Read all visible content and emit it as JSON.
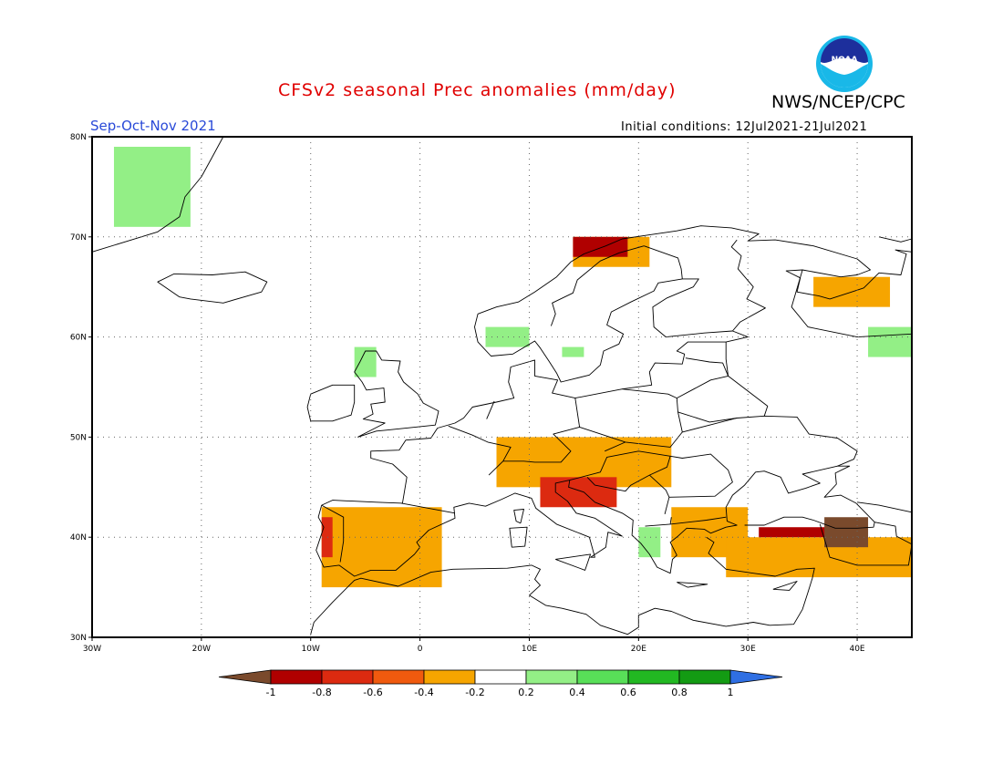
{
  "header": {
    "title": "CFSv2 seasonal Prec anomalies (mm/day)",
    "agency": "NWS/NCEP/CPC",
    "season": "Sep-Oct-Nov 2021",
    "initial_conditions": "Initial conditions: 12Jul2021-21Jul2021",
    "logo_text": "NOAA"
  },
  "map": {
    "lon_range": [
      -30,
      45
    ],
    "lat_range": [
      30,
      80
    ],
    "lon_ticks": [
      {
        "value": -30,
        "label": "30W"
      },
      {
        "value": -20,
        "label": "20W"
      },
      {
        "value": -10,
        "label": "10W"
      },
      {
        "value": 0,
        "label": "0"
      },
      {
        "value": 10,
        "label": "10E"
      },
      {
        "value": 20,
        "label": "20E"
      },
      {
        "value": 30,
        "label": "30E"
      },
      {
        "value": 40,
        "label": "40E"
      }
    ],
    "lat_ticks": [
      {
        "value": 30,
        "label": "30N"
      },
      {
        "value": 40,
        "label": "40N"
      },
      {
        "value": 50,
        "label": "50N"
      },
      {
        "value": 60,
        "label": "60N"
      },
      {
        "value": 70,
        "label": "70N"
      },
      {
        "value": 80,
        "label": "80N"
      }
    ],
    "grid": true,
    "colorbar": {
      "labels": [
        "-1",
        "-0.8",
        "-0.6",
        "-0.4",
        "-0.2",
        "0.2",
        "0.4",
        "0.6",
        "0.8",
        "1"
      ],
      "colors": [
        "#7a4a2c",
        "#b00000",
        "#dc2a10",
        "#f05a0e",
        "#f6a500",
        "#ffffff",
        "#93ef86",
        "#58df58",
        "#22b822",
        "#139b13",
        "#2f6fe3"
      ]
    }
  },
  "chart_data": {
    "type": "heatmap",
    "title": "CFSv2 seasonal Prec anomalies (mm/day)",
    "units": "mm/day",
    "period": "Sep-Oct-Nov 2021",
    "xlim": [
      -30,
      45
    ],
    "ylim": [
      30,
      80
    ],
    "anomaly_regions": [
      {
        "region": "Greenland (east coast)",
        "class": "0.2 to 0.4",
        "lon": [
          -28,
          -21
        ],
        "lat": [
          71,
          79
        ]
      },
      {
        "region": "Scotland (west)",
        "class": "0.2 to 0.4",
        "lon": [
          -6,
          -4
        ],
        "lat": [
          56,
          59
        ]
      },
      {
        "region": "Southern Norway",
        "class": "0.2 to 0.4",
        "lon": [
          6,
          10
        ],
        "lat": [
          59,
          61
        ]
      },
      {
        "region": "Southern Sweden",
        "class": "0.2 to 0.4",
        "lon": [
          13,
          15
        ],
        "lat": [
          58,
          59
        ]
      },
      {
        "region": "Northern Norway",
        "class": "-0.6 to -0.8",
        "lon": [
          14,
          19
        ],
        "lat": [
          68,
          70
        ]
      },
      {
        "region": "Northern Norway surroundings",
        "class": "-0.2 to -0.4",
        "lon": [
          14,
          21
        ],
        "lat": [
          67,
          70
        ]
      },
      {
        "region": "Alps and Central Europe",
        "class": "-0.2 to -0.4",
        "lon": [
          7,
          23
        ],
        "lat": [
          45,
          50
        ]
      },
      {
        "region": "Northern Adriatic / Dinarics",
        "class": "-0.4 to -0.6",
        "lon": [
          11,
          18
        ],
        "lat": [
          43,
          46
        ]
      },
      {
        "region": "Iberian Peninsula",
        "class": "-0.2 to -0.4",
        "lon": [
          -9,
          2
        ],
        "lat": [
          35,
          43
        ]
      },
      {
        "region": "Portugal (west coast)",
        "class": "-0.4 to -0.6",
        "lon": [
          -9,
          -8
        ],
        "lat": [
          38,
          42
        ]
      },
      {
        "region": "Western Greece",
        "class": "0.2 to 0.4",
        "lon": [
          20,
          22
        ],
        "lat": [
          38,
          41
        ]
      },
      {
        "region": "Balkans / Aegean",
        "class": "-0.2 to -0.4",
        "lon": [
          23,
          30
        ],
        "lat": [
          38,
          43
        ]
      },
      {
        "region": "Northern Turkey",
        "class": "-0.6 to -0.8",
        "lon": [
          31,
          38
        ],
        "lat": [
          40,
          41
        ]
      },
      {
        "region": "Eastern Turkey",
        "class": "-0.8 to -1",
        "lon": [
          37,
          41
        ],
        "lat": [
          39,
          42
        ]
      },
      {
        "region": "Southern Turkey",
        "class": "-0.2 to -0.4",
        "lon": [
          28,
          45
        ],
        "lat": [
          36,
          40
        ]
      },
      {
        "region": "Northwest Russia (White Sea)",
        "class": "-0.2 to -0.4",
        "lon": [
          36,
          43
        ],
        "lat": [
          63,
          66
        ]
      },
      {
        "region": "Northwest Russia (east)",
        "class": "0.2 to 0.4",
        "lon": [
          41,
          45
        ],
        "lat": [
          58,
          61
        ]
      }
    ]
  }
}
